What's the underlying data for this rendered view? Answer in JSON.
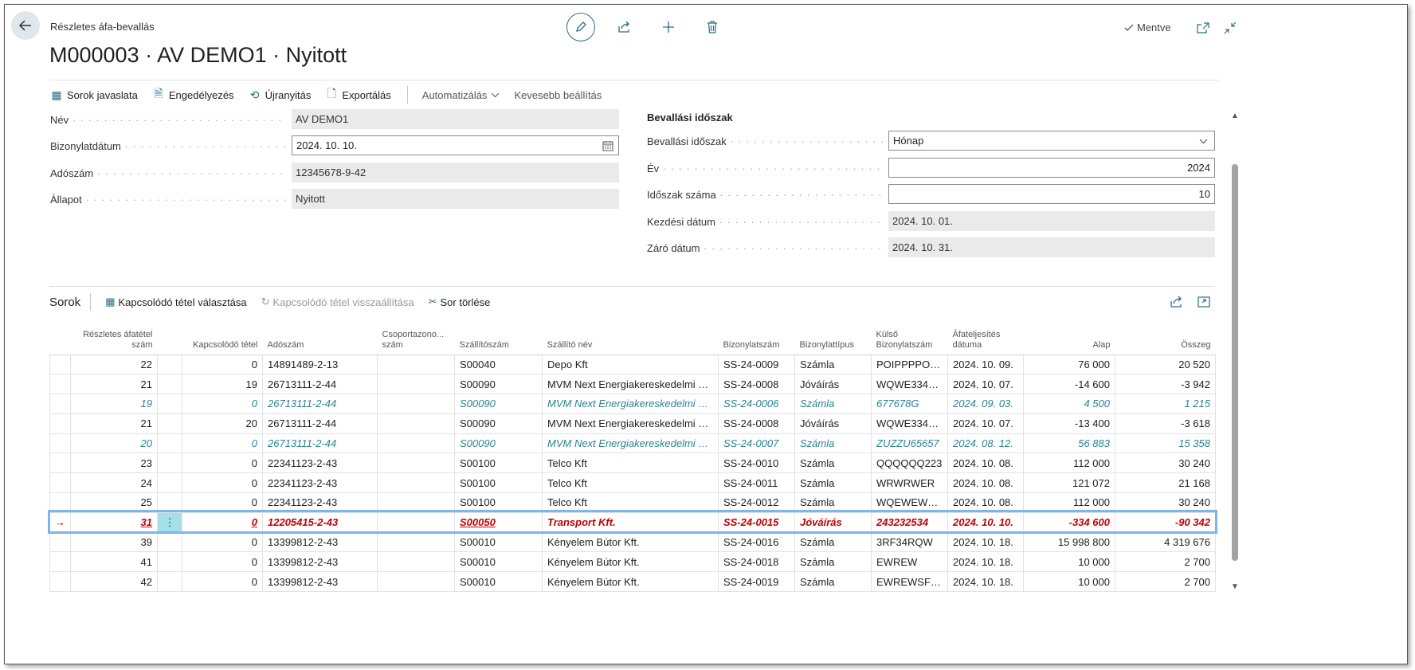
{
  "header": {
    "breadcrumb": "Részletes áfa-bevallás",
    "title": "M000003 · AV DEMO1 · Nyitott",
    "saved_label": "Mentve"
  },
  "actions": {
    "suggest_lines": "Sorok javaslata",
    "release": "Engedélyezés",
    "reopen": "Újranyitás",
    "export": "Exportálás",
    "automate": "Automatizálás",
    "fewer_options": "Kevesebb beállítás"
  },
  "general": {
    "name_label": "Név",
    "name_value": "AV DEMO1",
    "doc_date_label": "Bizonylatdátum",
    "doc_date_value": "2024. 10. 10.",
    "tax_id_label": "Adószám",
    "tax_id_value": "12345678-9-42",
    "status_label": "Állapot",
    "status_value": "Nyitott"
  },
  "period": {
    "section_title": "Bevallási időszak",
    "period_label": "Bevallási időszak",
    "period_value": "Hónap",
    "year_label": "Év",
    "year_value": "2024",
    "period_no_label": "Időszak száma",
    "period_no_value": "10",
    "start_label": "Kezdési dátum",
    "start_value": "2024. 10. 01.",
    "end_label": "Záró dátum",
    "end_value": "2024. 10. 31."
  },
  "lines": {
    "title": "Sorok",
    "select_related": "Kapcsolódó tétel választása",
    "reset_related": "Kapcsolódó tétel visszaállítása",
    "delete_line": "Sor törlése",
    "columns": {
      "entry_no": "Részletes áfatétel szám",
      "related": "Kapcsolódó tétel",
      "tax_id": "Adószám",
      "group_id": "Csoportazono... szám",
      "vendor_no": "Szállítószám",
      "vendor_name": "Szállító név",
      "doc_no": "Bizonylatszám",
      "doc_type": "Bizonylattípus",
      "ext_doc_no": "Külső Bizonylatszám",
      "vat_date": "Áfateljesítés dátuma",
      "base": "Alap",
      "amount": "Összeg"
    },
    "rows": [
      {
        "entry_no": "22",
        "related": "0",
        "tax_id": "14891489-2-13",
        "vendor_no": "S00040",
        "vendor_name": "Depo Kft",
        "doc_no": "SS-24-0009",
        "doc_type": "Számla",
        "ext_doc_no": "POIPPPPO200...",
        "vat_date": "2024. 10. 09.",
        "base": "76 000",
        "amount": "20 520"
      },
      {
        "entry_no": "21",
        "related": "19",
        "tax_id": "26713111-2-44",
        "vendor_no": "S00090",
        "vendor_name": "MVM Next Energiakereskedelmi Zrt.",
        "doc_no": "SS-24-0008",
        "doc_type": "Jóváírás",
        "ext_doc_no": "WQWE334234...",
        "vat_date": "2024. 10. 07.",
        "base": "-14 600",
        "amount": "-3 942"
      },
      {
        "entry_no": "19",
        "related": "0",
        "tax_id": "26713111-2-44",
        "vendor_no": "S00090",
        "vendor_name": "MVM Next Energiakereskedelmi Zrt.",
        "doc_no": "SS-24-0006",
        "doc_type": "Számla",
        "ext_doc_no": "677678G",
        "vat_date": "2024. 09. 03.",
        "base": "4 500",
        "amount": "1 215"
      },
      {
        "entry_no": "21",
        "related": "20",
        "tax_id": "26713111-2-44",
        "vendor_no": "S00090",
        "vendor_name": "MVM Next Energiakereskedelmi Zrt.",
        "doc_no": "SS-24-0008",
        "doc_type": "Jóváírás",
        "ext_doc_no": "WQWE334234...",
        "vat_date": "2024. 10. 07.",
        "base": "-13 400",
        "amount": "-3 618"
      },
      {
        "entry_no": "20",
        "related": "0",
        "tax_id": "26713111-2-44",
        "vendor_no": "S00090",
        "vendor_name": "MVM Next Energiakereskedelmi Zrt.",
        "doc_no": "SS-24-0007",
        "doc_type": "Számla",
        "ext_doc_no": "ZUZZU65657",
        "vat_date": "2024. 08. 12.",
        "base": "56 883",
        "amount": "15 358"
      },
      {
        "entry_no": "23",
        "related": "0",
        "tax_id": "22341123-2-43",
        "vendor_no": "S00100",
        "vendor_name": "Telco Kft",
        "doc_no": "SS-24-0010",
        "doc_type": "Számla",
        "ext_doc_no": "QQQQQQ223",
        "vat_date": "2024. 10. 08.",
        "base": "112 000",
        "amount": "30 240"
      },
      {
        "entry_no": "24",
        "related": "0",
        "tax_id": "22341123-2-43",
        "vendor_no": "S00100",
        "vendor_name": "Telco Kft",
        "doc_no": "SS-24-0011",
        "doc_type": "Számla",
        "ext_doc_no": "WRWRWER",
        "vat_date": "2024. 10. 08.",
        "base": "121 072",
        "amount": "21 168"
      },
      {
        "entry_no": "25",
        "related": "0",
        "tax_id": "22341123-2-43",
        "vendor_no": "S00100",
        "vendor_name": "Telco Kft",
        "doc_no": "SS-24-0012",
        "doc_type": "Számla",
        "ext_doc_no": "WQEWEWE23...",
        "vat_date": "2024. 10. 08.",
        "base": "112 000",
        "amount": "30 240"
      },
      {
        "entry_no": "31",
        "related": "0",
        "tax_id": "12205415-2-43",
        "vendor_no": "S00050",
        "vendor_name": "Transport Kft.",
        "doc_no": "SS-24-0015",
        "doc_type": "Jóváírás",
        "ext_doc_no": "243232534",
        "vat_date": "2024. 10. 10.",
        "base": "-334 600",
        "amount": "-90 342"
      },
      {
        "entry_no": "39",
        "related": "0",
        "tax_id": "13399812-2-43",
        "vendor_no": "S00010",
        "vendor_name": "Kényelem Bútor Kft.",
        "doc_no": "SS-24-0016",
        "doc_type": "Számla",
        "ext_doc_no": "3RF34RQW",
        "vat_date": "2024. 10. 18.",
        "base": "15 998 800",
        "amount": "4 319 676"
      },
      {
        "entry_no": "41",
        "related": "0",
        "tax_id": "13399812-2-43",
        "vendor_no": "S00010",
        "vendor_name": "Kényelem Bútor Kft.",
        "doc_no": "SS-24-0018",
        "doc_type": "Számla",
        "ext_doc_no": "EWREW",
        "vat_date": "2024. 10. 18.",
        "base": "10 000",
        "amount": "2 700"
      },
      {
        "entry_no": "42",
        "related": "0",
        "tax_id": "13399812-2-43",
        "vendor_no": "S00010",
        "vendor_name": "Kényelem Bútor Kft.",
        "doc_no": "SS-24-0019",
        "doc_type": "Számla",
        "ext_doc_no": "EWREWSFSDF",
        "vat_date": "2024. 10. 18.",
        "base": "10 000",
        "amount": "2 700"
      }
    ]
  },
  "colors": {
    "accent": "#2b6d85",
    "related_row": "#2a8394",
    "current_row": "#c00000",
    "highlight_border": "#7cb6ea"
  }
}
